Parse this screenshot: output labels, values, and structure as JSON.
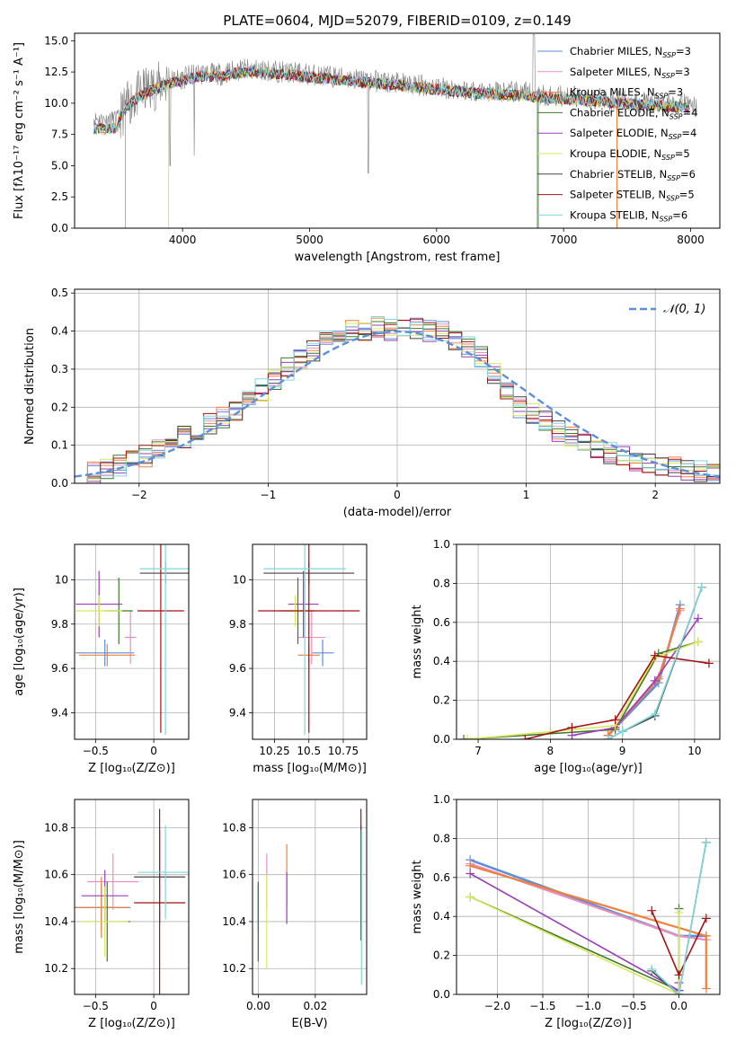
{
  "colors": {
    "chabrier_miles": "#5b8fd9",
    "salpeter_miles": "#e98fc0",
    "kroupa_miles": "#f0803c",
    "chabrier_elodie": "#3b7a2a",
    "salpeter_elodie": "#9b3fb8",
    "kroupa_elodie": "#d9e85a",
    "chabrier_stelib": "#444444",
    "salpeter_stelib": "#a31212",
    "kroupa_stelib": "#7fd6de",
    "data": "#808080",
    "normal": "#5b8fd9"
  },
  "chart_data": [
    {
      "id": "spectrum",
      "type": "line",
      "title": "PLATE=0604, MJD=52079, FIBERID=0109, z=0.149",
      "xlabel": "wavelength [Angstrom, rest frame]",
      "ylabel": "Flux [fλ10⁻¹⁷ erg cm⁻² s⁻¹ A⁻¹]",
      "xlim": [
        3150,
        8230
      ],
      "ylim": [
        0,
        15.6
      ],
      "xticks": [
        "4000",
        "5000",
        "6000",
        "7000",
        "8000"
      ],
      "yticks": [
        "0.0",
        "2.5",
        "5.0",
        "7.5",
        "10.0",
        "12.5",
        "15.0"
      ],
      "continuum": {
        "x": [
          3300,
          3400,
          3500,
          3600,
          3700,
          3800,
          3900,
          4000,
          4100,
          4200,
          4300,
          4400,
          4500,
          4700,
          4900,
          5100,
          5300,
          5500,
          5700,
          5900,
          6100,
          6300,
          6500,
          6700,
          6900,
          7100,
          7300,
          7500,
          7700,
          7900,
          8100
        ],
        "y": [
          8.8,
          8.7,
          8.9,
          10.3,
          11.0,
          11.4,
          11.8,
          12.0,
          12.3,
          12.4,
          12.3,
          12.6,
          12.7,
          12.6,
          12.4,
          12.2,
          12.0,
          11.8,
          11.6,
          11.4,
          11.2,
          11.0,
          10.9,
          10.8,
          10.6,
          10.5,
          10.3,
          10.2,
          10.0,
          9.9,
          9.8
        ]
      },
      "series": [
        {
          "name": "Chabrier MILES, N$_{SSP}$=3"
        },
        {
          "name": "Salpeter MILES, N$_{SSP}$=3"
        },
        {
          "name": "Kroupa MILES, N$_{SSP}$=3"
        },
        {
          "name": "Chabrier ELODIE, N$_{SSP}$=4"
        },
        {
          "name": "Salpeter ELODIE, N$_{SSP}$=4"
        },
        {
          "name": "Kroupa ELODIE, N$_{SSP}$=5"
        },
        {
          "name": "Chabrier STELIB, N$_{SSP}$=6"
        },
        {
          "name": "Salpeter STELIB, N$_{SSP}$=5"
        },
        {
          "name": "Kroupa STELIB, N$_{SSP}$=6"
        }
      ],
      "legend": "upper-right"
    },
    {
      "id": "residuals",
      "type": "line",
      "xlabel": "(data-model)/error",
      "ylabel": "Normed distribution",
      "xlim": [
        -2.5,
        2.5
      ],
      "ylim": [
        0,
        0.51
      ],
      "xticks": [
        "−2",
        "−1",
        "0",
        "1",
        "2"
      ],
      "yticks": [
        "0.0",
        "0.1",
        "0.2",
        "0.3",
        "0.4",
        "0.5"
      ],
      "hist_bins": [
        -2.5,
        2.5,
        50
      ],
      "hist_mean": [
        0.025,
        0.03,
        0.038,
        0.045,
        0.055,
        0.07,
        0.085,
        0.1,
        0.12,
        0.135,
        0.155,
        0.175,
        0.195,
        0.22,
        0.245,
        0.27,
        0.3,
        0.33,
        0.35,
        0.37,
        0.385,
        0.4,
        0.405,
        0.41,
        0.405,
        0.41,
        0.405,
        0.4,
        0.395,
        0.38,
        0.36,
        0.33,
        0.29,
        0.25,
        0.2,
        0.18,
        0.16,
        0.14,
        0.12,
        0.1,
        0.09,
        0.08,
        0.07,
        0.06,
        0.05,
        0.045,
        0.04,
        0.035,
        0.03,
        0.025
      ],
      "normal_label": "𝒩(0, 1)",
      "legend": "upper-right"
    },
    {
      "id": "age_vs_Z",
      "type": "scatter",
      "xlabel": "Z [log₁₀(Z/Z⊙)]",
      "ylabel": "age  [log₁₀(age/yr)]",
      "xlim": [
        -0.68,
        0.3
      ],
      "ylim": [
        9.28,
        10.16
      ],
      "xticks": [
        -0.5,
        0.0
      ],
      "yticks": [
        9.4,
        9.6,
        9.8,
        10.0
      ],
      "points": [
        {
          "model": "chabrier_miles",
          "x": -0.42,
          "xerr": 0.25,
          "y": 9.67,
          "yerr": 0.06
        },
        {
          "model": "salpeter_miles",
          "x": -0.2,
          "xerr": 0.05,
          "y": 9.74,
          "yerr": 0.12
        },
        {
          "model": "kroupa_miles",
          "x": -0.4,
          "xerr": 0.24,
          "y": 9.66,
          "yerr": 0.05
        },
        {
          "model": "chabrier_elodie",
          "x": -0.3,
          "xerr": 0.12,
          "y": 9.86,
          "yerr": 0.15
        },
        {
          "model": "salpeter_elodie",
          "x": -0.47,
          "xerr": 0.2,
          "y": 9.89,
          "yerr": 0.15
        },
        {
          "model": "kroupa_elodie",
          "x": -0.47,
          "xerr": 0.2,
          "y": 9.86,
          "yerr": 0.07
        },
        {
          "model": "chabrier_stelib",
          "x": 0.1,
          "xerr": 0.22,
          "y": 10.03,
          "yerr": 0.05
        },
        {
          "model": "salpeter_stelib",
          "x": 0.06,
          "xerr": 0.2,
          "y": 9.86,
          "yerr": 0.55
        },
        {
          "model": "kroupa_stelib",
          "x": 0.1,
          "xerr": 0.22,
          "y": 10.05,
          "yerr": 0.75
        }
      ]
    },
    {
      "id": "age_vs_mass",
      "type": "scatter",
      "xlabel": "mass [log₁₀(M/M⊙)]",
      "ylabel": "",
      "xlim": [
        10.09,
        10.92
      ],
      "ylim": [
        9.28,
        10.16
      ],
      "xticks": [
        10.25,
        10.5,
        10.75
      ],
      "yticks": [
        9.4,
        9.6,
        9.8,
        10.0
      ],
      "points": [
        {
          "model": "chabrier_miles",
          "x": 10.6,
          "xerr": 0.08,
          "y": 9.67,
          "yerr": 0.06
        },
        {
          "model": "salpeter_miles",
          "x": 10.52,
          "xerr": 0.1,
          "y": 9.74,
          "yerr": 0.12
        },
        {
          "model": "kroupa_miles",
          "x": 10.5,
          "xerr": 0.08,
          "y": 9.66,
          "yerr": 0.05
        },
        {
          "model": "chabrier_elodie",
          "x": 10.42,
          "xerr": 0.12,
          "y": 9.86,
          "yerr": 0.15
        },
        {
          "model": "salpeter_elodie",
          "x": 10.46,
          "xerr": 0.11,
          "y": 9.89,
          "yerr": 0.15
        },
        {
          "model": "kroupa_elodie",
          "x": 10.4,
          "xerr": 0.12,
          "y": 9.86,
          "yerr": 0.07
        },
        {
          "model": "chabrier_stelib",
          "x": 10.5,
          "xerr": 0.33,
          "y": 10.03,
          "yerr": 0.05
        },
        {
          "model": "salpeter_stelib",
          "x": 10.5,
          "xerr": 0.37,
          "y": 9.86,
          "yerr": 0.55
        },
        {
          "model": "kroupa_stelib",
          "x": 10.47,
          "xerr": 0.3,
          "y": 10.05,
          "yerr": 0.75
        }
      ]
    },
    {
      "id": "massweight_vs_age",
      "type": "line",
      "xlabel": "age  [log₁₀(age/yr)]",
      "ylabel": "mass weight",
      "xlim": [
        6.7,
        10.35
      ],
      "ylim": [
        0,
        1.0
      ],
      "xticks": [
        7,
        8,
        9,
        10
      ],
      "yticks": [
        "0.0",
        "0.2",
        "0.4",
        "0.6",
        "0.8",
        "1.0"
      ],
      "series": [
        {
          "model": "chabrier_miles",
          "x": [
            8.8,
            9.5,
            9.8
          ],
          "y": [
            0.02,
            0.29,
            0.69
          ]
        },
        {
          "model": "salpeter_miles",
          "x": [
            8.8,
            9.5,
            9.8
          ],
          "y": [
            0.02,
            0.32,
            0.66
          ]
        },
        {
          "model": "kroupa_miles",
          "x": [
            8.8,
            9.5,
            9.8
          ],
          "y": [
            0.02,
            0.31,
            0.67
          ]
        },
        {
          "model": "chabrier_elodie",
          "x": [
            6.8,
            8.9,
            9.5,
            10.05
          ],
          "y": [
            0.0,
            0.05,
            0.44,
            0.5
          ]
        },
        {
          "model": "salpeter_elodie",
          "x": [
            8.3,
            8.9,
            9.45,
            10.05
          ],
          "y": [
            0.02,
            0.06,
            0.3,
            0.62
          ]
        },
        {
          "model": "kroupa_elodie",
          "x": [
            6.85,
            8.9,
            9.45,
            10.05
          ],
          "y": [
            0.0,
            0.07,
            0.42,
            0.5
          ]
        },
        {
          "model": "chabrier_stelib",
          "x": [
            8.8,
            9.0,
            9.45,
            10.1
          ],
          "y": [
            0.0,
            0.04,
            0.12,
            0.78
          ]
        },
        {
          "model": "salpeter_stelib",
          "x": [
            7.65,
            8.3,
            8.9,
            9.45,
            10.2
          ],
          "y": [
            0.0,
            0.06,
            0.1,
            0.43,
            0.39
          ]
        },
        {
          "model": "kroupa_stelib",
          "x": [
            8.8,
            9.0,
            9.45,
            10.1
          ],
          "y": [
            0.0,
            0.04,
            0.13,
            0.78
          ]
        }
      ]
    },
    {
      "id": "mass_vs_Z",
      "type": "scatter",
      "xlabel": "Z [log₁₀(Z/Z⊙)]",
      "ylabel": "mass [log₁₀(M/M⊙)]",
      "xlim": [
        -0.68,
        0.3
      ],
      "ylim": [
        10.09,
        10.92
      ],
      "xticks": [
        -0.5,
        0.0
      ],
      "yticks": [
        10.2,
        10.4,
        10.6,
        10.8
      ],
      "points": [
        {
          "model": "chabrier_miles",
          "x": -0.45,
          "xerr": 0.25,
          "y": 10.46,
          "yerr": 0.1
        },
        {
          "model": "salpeter_miles",
          "x": -0.35,
          "xerr": 0.22,
          "y": 10.57,
          "yerr": 0.12
        },
        {
          "model": "kroupa_miles",
          "x": -0.45,
          "xerr": 0.24,
          "y": 10.46,
          "yerr": 0.13
        },
        {
          "model": "chabrier_elodie",
          "x": -0.4,
          "xerr": 0.2,
          "y": 10.4,
          "yerr": 0.17
        },
        {
          "model": "salpeter_elodie",
          "x": -0.42,
          "xerr": 0.2,
          "y": 10.51,
          "yerr": 0.11
        },
        {
          "model": "kroupa_elodie",
          "x": -0.42,
          "xerr": 0.2,
          "y": 10.4,
          "yerr": 0.15
        },
        {
          "model": "chabrier_stelib",
          "x": 0.05,
          "xerr": 0.22,
          "y": 10.59,
          "yerr": 0.2
        },
        {
          "model": "salpeter_stelib",
          "x": 0.05,
          "xerr": 0.22,
          "y": 10.48,
          "yerr": 0.4
        },
        {
          "model": "kroupa_stelib",
          "x": 0.1,
          "xerr": 0.24,
          "y": 10.61,
          "yerr": 0.2
        }
      ]
    },
    {
      "id": "mass_vs_ebv",
      "type": "scatter",
      "xlabel": "E(B-V)",
      "ylabel": "",
      "xlim": [
        -0.002,
        0.038
      ],
      "ylim": [
        10.09,
        10.92
      ],
      "xticks": [
        "0.00",
        "0.02"
      ],
      "yticks": [
        10.2,
        10.4,
        10.6,
        10.8
      ],
      "points": [
        {
          "model": "chabrier_miles",
          "x": 0.0,
          "y": 10.46,
          "yerr": 0.1
        },
        {
          "model": "salpeter_miles",
          "x": 0.003,
          "y": 10.57,
          "yerr": 0.12
        },
        {
          "model": "kroupa_miles",
          "x": 0.01,
          "y": 10.6,
          "yerr": 0.13
        },
        {
          "model": "chabrier_elodie",
          "x": 0.0,
          "y": 10.4,
          "yerr": 0.17
        },
        {
          "model": "salpeter_elodie",
          "x": 0.01,
          "y": 10.5,
          "yerr": 0.11
        },
        {
          "model": "kroupa_elodie",
          "x": 0.003,
          "y": 10.4,
          "yerr": 0.2
        },
        {
          "model": "chabrier_stelib",
          "x": 0.036,
          "y": 10.59,
          "yerr": 0.22
        },
        {
          "model": "salpeter_stelib",
          "x": 0.036,
          "y": 10.6,
          "yerr": 0.28
        },
        {
          "model": "kroupa_stelib",
          "x": 0.0362,
          "y": 10.46,
          "yerr": 0.33
        }
      ]
    },
    {
      "id": "massweight_vs_Z",
      "type": "line",
      "xlabel": "Z [log₁₀(Z/Z⊙)]",
      "ylabel": "mass weight",
      "xlim": [
        -2.45,
        0.45
      ],
      "ylim": [
        0,
        1.0
      ],
      "xticks": [
        "−2.0",
        "−1.5",
        "−1.0",
        "−0.5",
        "0.0"
      ],
      "yticks": [
        "0.0",
        "0.2",
        "0.4",
        "0.6",
        "0.8",
        "1.0"
      ],
      "series": [
        {
          "model": "chabrier_miles",
          "x": [
            -2.3,
            0.0,
            0.3
          ],
          "y": [
            0.69,
            0.3,
            0.3
          ]
        },
        {
          "model": "salpeter_miles",
          "x": [
            -2.3,
            0.0,
            0.3
          ],
          "y": [
            0.67,
            0.3,
            0.28
          ]
        },
        {
          "model": "kroupa_miles",
          "x": [
            -2.3,
            0.3,
            0.3
          ],
          "y": [
            0.66,
            0.3,
            0.03
          ]
        },
        {
          "model": "chabrier_elodie",
          "x": [
            -2.3,
            0.0,
            0.0
          ],
          "y": [
            0.5,
            0.02,
            0.44
          ]
        },
        {
          "model": "salpeter_elodie",
          "x": [
            -2.3,
            0.0,
            0.0
          ],
          "y": [
            0.62,
            0.02,
            0.06
          ]
        },
        {
          "model": "kroupa_elodie",
          "x": [
            -2.3,
            0.0,
            0.0
          ],
          "y": [
            0.5,
            0.0,
            0.42
          ]
        },
        {
          "model": "chabrier_stelib",
          "x": [
            -0.3,
            0.0,
            0.3
          ],
          "y": [
            0.12,
            0.0,
            0.78
          ]
        },
        {
          "model": "salpeter_stelib",
          "x": [
            -0.3,
            0.0,
            0.3
          ],
          "y": [
            0.43,
            0.1,
            0.39
          ]
        },
        {
          "model": "kroupa_stelib",
          "x": [
            -0.3,
            0.0,
            0.3
          ],
          "y": [
            0.13,
            0.0,
            0.78
          ]
        }
      ]
    }
  ]
}
